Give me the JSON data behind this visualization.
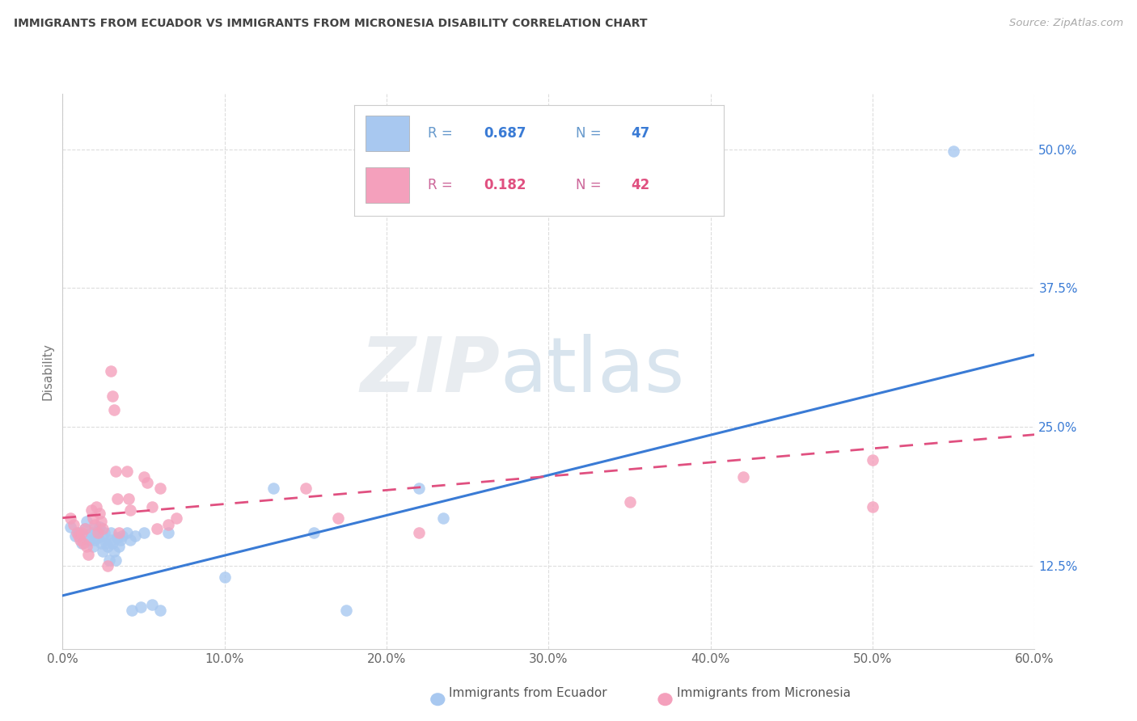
{
  "title": "IMMIGRANTS FROM ECUADOR VS IMMIGRANTS FROM MICRONESIA DISABILITY CORRELATION CHART",
  "source": "Source: ZipAtlas.com",
  "xlabel_ticks": [
    "0.0%",
    "10.0%",
    "20.0%",
    "30.0%",
    "40.0%",
    "50.0%",
    "60.0%"
  ],
  "xlabel_vals": [
    0.0,
    0.1,
    0.2,
    0.3,
    0.4,
    0.5,
    0.6
  ],
  "ylabel_ticks": [
    "12.5%",
    "25.0%",
    "37.5%",
    "50.0%"
  ],
  "ylabel_vals": [
    0.125,
    0.25,
    0.375,
    0.5
  ],
  "xlim": [
    0.0,
    0.6
  ],
  "ylim": [
    0.05,
    0.55
  ],
  "ylabel": "Disability",
  "legend_ecuador_R": "0.687",
  "legend_ecuador_N": "47",
  "legend_micronesia_R": "0.182",
  "legend_micronesia_N": "42",
  "ecuador_color": "#A8C8F0",
  "micronesia_color": "#F4A0BC",
  "ecuador_line_color": "#3A7BD5",
  "micronesia_line_color": "#E05080",
  "ecuador_x": [
    0.005,
    0.008,
    0.01,
    0.012,
    0.014,
    0.015,
    0.016,
    0.017,
    0.018,
    0.019,
    0.02,
    0.02,
    0.021,
    0.022,
    0.023,
    0.024,
    0.025,
    0.025,
    0.026,
    0.027,
    0.028,
    0.029,
    0.03,
    0.03,
    0.031,
    0.032,
    0.033,
    0.034,
    0.035,
    0.036,
    0.037,
    0.04,
    0.042,
    0.043,
    0.045,
    0.048,
    0.05,
    0.055,
    0.06,
    0.065,
    0.1,
    0.13,
    0.155,
    0.175,
    0.22,
    0.235,
    0.55
  ],
  "ecuador_y": [
    0.16,
    0.152,
    0.155,
    0.145,
    0.158,
    0.165,
    0.152,
    0.148,
    0.155,
    0.142,
    0.158,
    0.148,
    0.155,
    0.15,
    0.16,
    0.145,
    0.152,
    0.138,
    0.155,
    0.145,
    0.142,
    0.13,
    0.155,
    0.148,
    0.145,
    0.138,
    0.13,
    0.15,
    0.142,
    0.148,
    0.152,
    0.155,
    0.148,
    0.085,
    0.152,
    0.088,
    0.155,
    0.09,
    0.085,
    0.155,
    0.115,
    0.195,
    0.155,
    0.085,
    0.195,
    0.168,
    0.498
  ],
  "micronesia_x": [
    0.005,
    0.007,
    0.009,
    0.01,
    0.011,
    0.012,
    0.013,
    0.014,
    0.015,
    0.016,
    0.018,
    0.019,
    0.02,
    0.021,
    0.022,
    0.023,
    0.024,
    0.025,
    0.028,
    0.03,
    0.031,
    0.032,
    0.033,
    0.034,
    0.035,
    0.04,
    0.041,
    0.042,
    0.05,
    0.052,
    0.055,
    0.058,
    0.06,
    0.065,
    0.07,
    0.15,
    0.17,
    0.22,
    0.35,
    0.42,
    0.5,
    0.5
  ],
  "micronesia_y": [
    0.168,
    0.162,
    0.155,
    0.152,
    0.148,
    0.155,
    0.145,
    0.158,
    0.142,
    0.135,
    0.175,
    0.168,
    0.162,
    0.178,
    0.155,
    0.172,
    0.165,
    0.158,
    0.125,
    0.3,
    0.278,
    0.265,
    0.21,
    0.185,
    0.155,
    0.21,
    0.185,
    0.175,
    0.205,
    0.2,
    0.178,
    0.158,
    0.195,
    0.162,
    0.168,
    0.195,
    0.168,
    0.155,
    0.182,
    0.205,
    0.178,
    0.22
  ],
  "ecuador_line_y0": 0.098,
  "ecuador_line_y1": 0.315,
  "micronesia_line_y0": 0.168,
  "micronesia_line_y1": 0.243,
  "background_color": "#FFFFFF",
  "grid_color": "#CCCCCC"
}
